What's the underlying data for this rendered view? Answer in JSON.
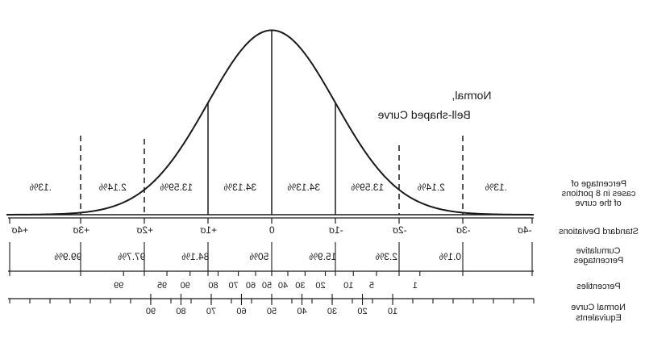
{
  "curve_title": {
    "line1": "Normal,",
    "line2": "Bell-shaped Curve"
  },
  "portion_percentages": [
    ".13%",
    "2.14%",
    "13.59%",
    "34.13%",
    "34.13%",
    "13.59%",
    "2.14%",
    ".13%"
  ],
  "std_deviations": [
    "+4σ",
    "+3σ",
    "+2σ",
    "+1σ",
    "0",
    "-1σ",
    "-2σ",
    "-3σ",
    "-4σ"
  ],
  "cumulative_percentages": [
    "99.9%",
    "97.7%",
    "84.1%",
    "50%",
    "15.9%",
    "2.3%",
    "0.1%"
  ],
  "percentiles": [
    "99",
    "95",
    "90",
    "80",
    "70",
    "60",
    "50",
    "40",
    "30",
    "20",
    "10",
    "5",
    "1"
  ],
  "nce_values": [
    "90",
    "80",
    "70",
    "60",
    "50",
    "40",
    "30",
    "20",
    "10"
  ],
  "row_labels": {
    "portions": [
      "Percentage of",
      "cases in 8 portions",
      "of the curve"
    ],
    "std_dev": "Standard Deviations",
    "cumulative": [
      "Cumulative",
      "Percentages"
    ],
    "percentiles": "Percentiles",
    "nce": [
      "Normal Curve",
      "Equivalents"
    ]
  },
  "colors": {
    "ink": "#1a1a1a",
    "background": "#ffffff"
  }
}
